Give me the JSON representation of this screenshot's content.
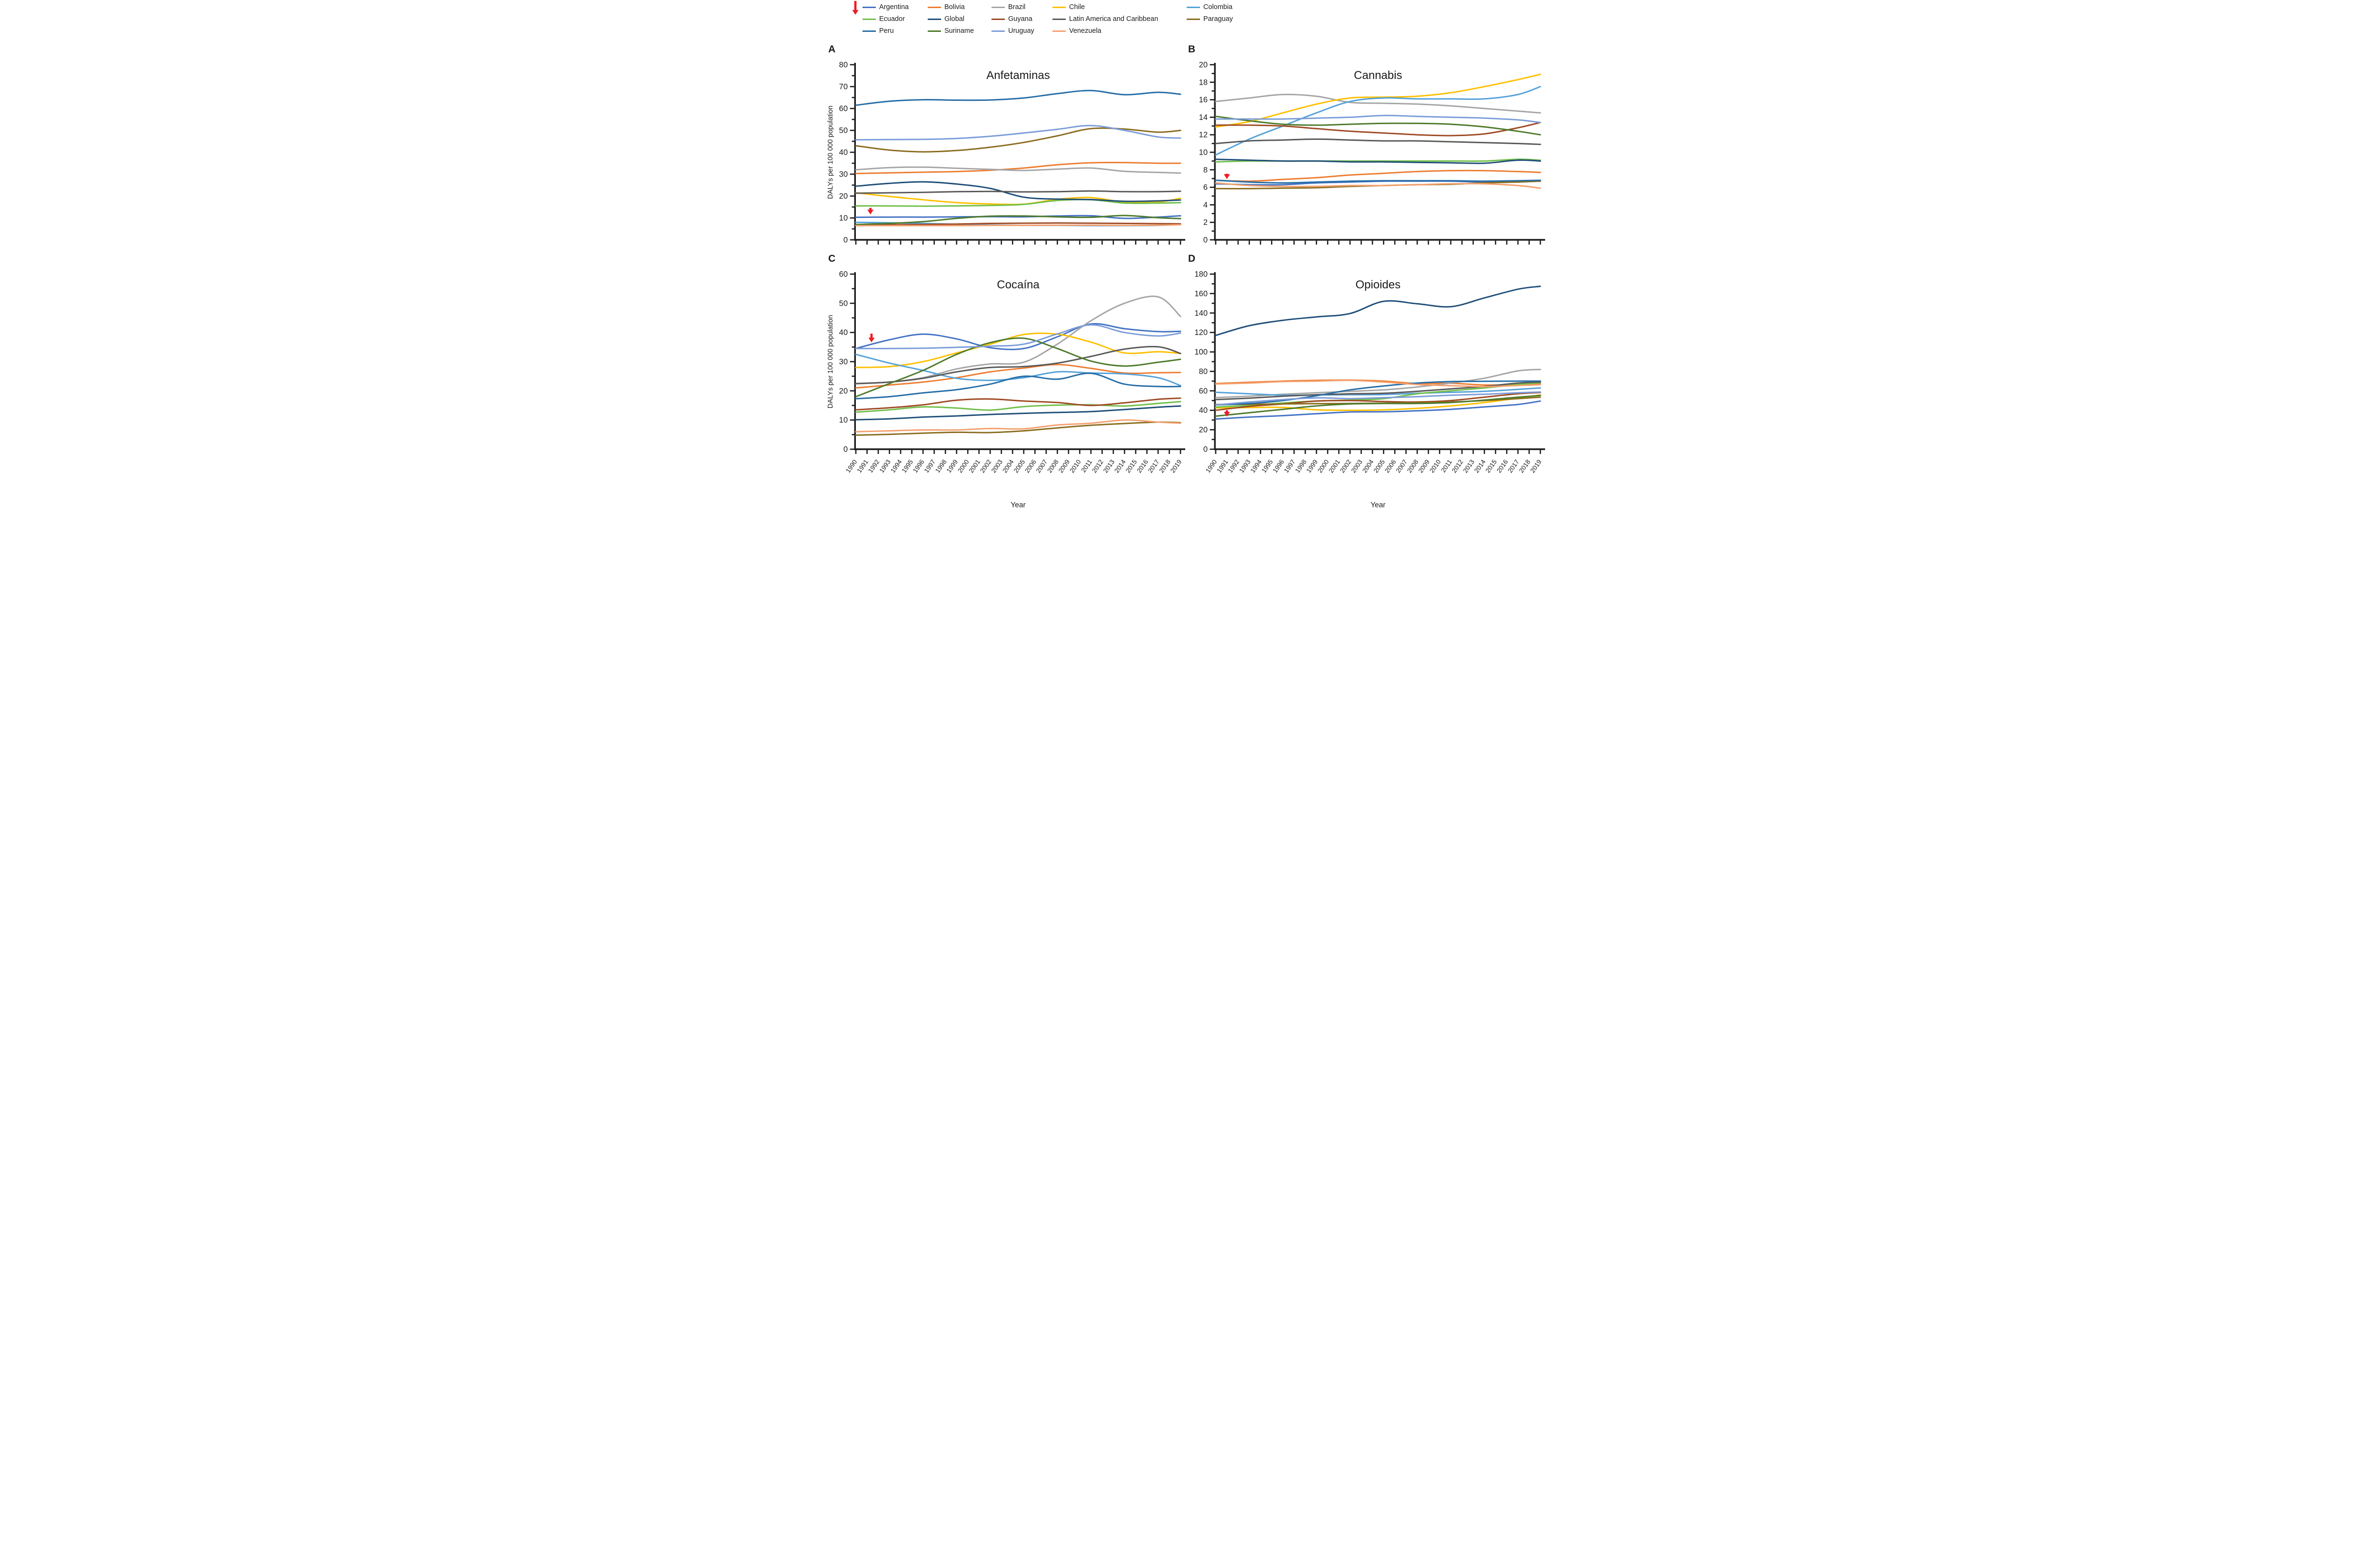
{
  "figure": {
    "y_axis_title": "DALYs per 100 000 population",
    "x_axis_title": "Year"
  },
  "legend": {
    "arrow_color": "#ec1c24",
    "items": [
      {
        "label": "Argentina",
        "color": "#4472c4"
      },
      {
        "label": "Bolivia",
        "color": "#ed7d31"
      },
      {
        "label": "Brazil",
        "color": "#a5a5a5"
      },
      {
        "label": "Chile",
        "color": "#ffc000"
      },
      {
        "label": "Colombia",
        "color": "#55a1d9"
      },
      {
        "label": "Ecuador",
        "color": "#71bf49"
      },
      {
        "label": "Global",
        "color": "#1f4e79"
      },
      {
        "label": "Guyana",
        "color": "#9e4a24"
      },
      {
        "label": "Latin America and Caribbean",
        "color": "#595959"
      },
      {
        "label": "Paraguay",
        "color": "#8a6c1e"
      },
      {
        "label": "Peru",
        "color": "#266da6"
      },
      {
        "label": "Suriname",
        "color": "#4d7a2b"
      },
      {
        "label": "Uruguay",
        "color": "#7b9cd9"
      },
      {
        "label": "Venezuela",
        "color": "#f4a06e"
      }
    ]
  },
  "axes": {
    "x_tick_labels": [
      1990,
      1991,
      1992,
      1993,
      1994,
      1995,
      1996,
      1997,
      1998,
      1999,
      2000,
      2001,
      2002,
      2003,
      2004,
      2005,
      2006,
      2007,
      2008,
      2009,
      2010,
      2011,
      2012,
      2013,
      2014,
      2015,
      2016,
      2017,
      2018,
      2019
    ]
  },
  "chart_data": [
    {
      "panel": "A",
      "letter": "A",
      "title": "Anfetaminas",
      "type": "line",
      "ylim": [
        0,
        80
      ],
      "y_ticks": [
        0,
        10,
        20,
        30,
        40,
        50,
        60,
        70,
        80
      ],
      "y_minor_step": 5,
      "show_y_axis_title": true,
      "show_x_labels": false,
      "x": [
        1990,
        1993,
        1996,
        1999,
        2002,
        2005,
        2008,
        2011,
        2014,
        2017,
        2019
      ],
      "arrow": {
        "year": 1991.3,
        "y_top": 14.6,
        "y_tip": 11.6
      },
      "series": [
        {
          "name": "Argentina",
          "values": [
            10.3,
            10.4,
            10.4,
            10.5,
            10.6,
            10.5,
            10.9,
            11.0,
            9.8,
            10.4,
            11.0
          ]
        },
        {
          "name": "Bolivia",
          "values": [
            30.3,
            30.6,
            30.9,
            31.2,
            31.8,
            32.8,
            34.3,
            35.2,
            35.3,
            35.0,
            35.0
          ]
        },
        {
          "name": "Brazil",
          "values": [
            32.0,
            33.0,
            33.2,
            32.7,
            32.2,
            31.7,
            32.3,
            32.8,
            31.3,
            30.8,
            30.5
          ]
        },
        {
          "name": "Chile",
          "values": [
            21.5,
            19.8,
            18.3,
            17.0,
            16.4,
            16.3,
            18.5,
            19.3,
            17.2,
            17.3,
            19.0
          ]
        },
        {
          "name": "Colombia",
          "values": [
            8.0,
            7.8,
            7.5,
            7.1,
            6.8,
            6.6,
            6.6,
            6.5,
            6.5,
            6.6,
            7.0
          ]
        },
        {
          "name": "Ecuador",
          "values": [
            15.5,
            15.5,
            15.4,
            15.5,
            15.7,
            16.2,
            18.0,
            18.3,
            16.8,
            16.8,
            17.0
          ]
        },
        {
          "name": "Global",
          "values": [
            24.5,
            25.8,
            26.5,
            25.5,
            23.5,
            19.5,
            18.6,
            18.4,
            17.6,
            17.8,
            18.2
          ]
        },
        {
          "name": "Guyana",
          "values": [
            6.8,
            6.9,
            7.0,
            7.2,
            7.5,
            7.6,
            7.7,
            7.6,
            7.5,
            7.4,
            7.3
          ]
        },
        {
          "name": "Latin America and Caribbean",
          "values": [
            21.3,
            21.5,
            21.7,
            22.0,
            22.1,
            21.9,
            22.0,
            22.3,
            22.0,
            22.0,
            22.2
          ]
        },
        {
          "name": "Paraguay",
          "values": [
            43.0,
            41.0,
            40.2,
            40.8,
            42.3,
            44.5,
            47.5,
            50.8,
            50.6,
            49.2,
            50.0
          ]
        },
        {
          "name": "Peru",
          "values": [
            61.5,
            63.3,
            64.0,
            63.8,
            63.9,
            64.8,
            66.8,
            68.2,
            66.3,
            67.4,
            66.5
          ]
        },
        {
          "name": "Suriname",
          "values": [
            7.0,
            7.5,
            8.3,
            9.8,
            10.8,
            10.9,
            10.5,
            10.3,
            11.1,
            10.1,
            9.7
          ]
        },
        {
          "name": "Uruguay",
          "values": [
            45.7,
            45.8,
            45.9,
            46.3,
            47.3,
            48.8,
            50.5,
            52.2,
            50.0,
            47.0,
            46.5
          ]
        },
        {
          "name": "Venezuela",
          "values": [
            6.5,
            6.5,
            6.5,
            6.5,
            6.6,
            6.6,
            6.7,
            6.7,
            6.6,
            6.7,
            6.9
          ]
        }
      ]
    },
    {
      "panel": "B",
      "letter": "B",
      "title": "Cannabis",
      "type": "line",
      "ylim": [
        0,
        20
      ],
      "y_ticks": [
        0,
        2,
        4,
        6,
        8,
        10,
        12,
        14,
        16,
        18,
        20
      ],
      "y_minor_step": 1,
      "show_y_axis_title": false,
      "show_x_labels": false,
      "x": [
        1990,
        1993,
        1996,
        1999,
        2002,
        2005,
        2008,
        2011,
        2014,
        2017,
        2019
      ],
      "arrow": {
        "year": 1991.0,
        "y_top": 7.55,
        "y_tip": 6.95
      },
      "series": [
        {
          "name": "Argentina",
          "values": [
            6.4,
            6.3,
            6.3,
            6.5,
            6.6,
            6.7,
            6.7,
            6.7,
            6.6,
            6.7,
            6.7
          ]
        },
        {
          "name": "Bolivia",
          "values": [
            6.8,
            6.7,
            6.9,
            7.1,
            7.4,
            7.6,
            7.8,
            7.9,
            7.9,
            7.8,
            7.7
          ]
        },
        {
          "name": "Brazil",
          "values": [
            15.8,
            16.2,
            16.6,
            16.4,
            15.7,
            15.6,
            15.5,
            15.3,
            15.0,
            14.7,
            14.5
          ]
        },
        {
          "name": "Chile",
          "values": [
            12.9,
            13.5,
            14.5,
            15.5,
            16.2,
            16.3,
            16.4,
            16.8,
            17.5,
            18.3,
            18.9
          ]
        },
        {
          "name": "Colombia",
          "values": [
            9.7,
            11.5,
            13.0,
            14.5,
            15.8,
            16.2,
            16.1,
            16.1,
            16.1,
            16.6,
            17.5
          ]
        },
        {
          "name": "Ecuador",
          "values": [
            8.9,
            9.0,
            9.0,
            9.0,
            9.0,
            9.0,
            9.0,
            9.0,
            9.0,
            9.2,
            9.1
          ]
        },
        {
          "name": "Global",
          "values": [
            9.2,
            9.1,
            9.0,
            9.0,
            8.9,
            8.9,
            8.85,
            8.8,
            8.75,
            9.1,
            9.0
          ]
        },
        {
          "name": "Guyana",
          "values": [
            13.1,
            13.1,
            13.0,
            12.7,
            12.4,
            12.2,
            12.0,
            11.9,
            12.1,
            12.8,
            13.4
          ]
        },
        {
          "name": "Latin America and Caribbean",
          "values": [
            11.0,
            11.3,
            11.4,
            11.5,
            11.4,
            11.3,
            11.3,
            11.2,
            11.1,
            11.0,
            10.9
          ]
        },
        {
          "name": "Paraguay",
          "values": [
            5.85,
            5.85,
            5.9,
            5.95,
            6.1,
            6.2,
            6.3,
            6.35,
            6.5,
            6.6,
            6.7
          ]
        },
        {
          "name": "Peru",
          "values": [
            6.8,
            6.6,
            6.5,
            6.6,
            6.7,
            6.75,
            6.75,
            6.75,
            6.7,
            6.75,
            6.8
          ]
        },
        {
          "name": "Suriname",
          "values": [
            14.1,
            13.6,
            13.2,
            13.1,
            13.2,
            13.3,
            13.3,
            13.2,
            12.9,
            12.4,
            12.0
          ]
        },
        {
          "name": "Uruguay",
          "values": [
            13.8,
            13.8,
            13.8,
            13.9,
            14.0,
            14.2,
            14.1,
            14.0,
            13.9,
            13.7,
            13.4
          ]
        },
        {
          "name": "Venezuela",
          "values": [
            6.5,
            6.2,
            6.1,
            6.1,
            6.2,
            6.2,
            6.3,
            6.4,
            6.4,
            6.2,
            5.9
          ]
        }
      ]
    },
    {
      "panel": "C",
      "letter": "C",
      "title": "Cocaína",
      "type": "line",
      "ylim": [
        0,
        60
      ],
      "y_ticks": [
        0,
        10,
        20,
        30,
        40,
        50,
        60
      ],
      "y_minor_step": 5,
      "show_y_axis_title": true,
      "show_x_labels": true,
      "x": [
        1990,
        1993,
        1996,
        1999,
        2002,
        2005,
        2008,
        2011,
        2014,
        2017,
        2019
      ],
      "arrow": {
        "year": 1991.4,
        "y_top": 39.6,
        "y_tip": 36.6
      },
      "series": [
        {
          "name": "Argentina",
          "values": [
            34.5,
            37.5,
            39.4,
            37.8,
            34.8,
            34.5,
            38.5,
            42.9,
            41.3,
            40.3,
            40.4
          ]
        },
        {
          "name": "Bolivia",
          "values": [
            21.0,
            22.0,
            23.0,
            24.5,
            26.5,
            27.8,
            29.0,
            27.7,
            26.1,
            26.2,
            26.3
          ]
        },
        {
          "name": "Brazil",
          "values": [
            22.4,
            23.0,
            24.5,
            27.5,
            29.2,
            29.8,
            36.0,
            44.0,
            50.0,
            52.2,
            45.5
          ]
        },
        {
          "name": "Chile",
          "values": [
            28.0,
            28.3,
            30.0,
            33.0,
            36.0,
            39.3,
            39.4,
            36.7,
            33.0,
            33.4,
            32.8
          ]
        },
        {
          "name": "Colombia",
          "values": [
            32.5,
            29.5,
            27.0,
            24.3,
            23.6,
            24.5,
            26.5,
            26.1,
            25.8,
            24.5,
            21.8
          ]
        },
        {
          "name": "Ecuador",
          "values": [
            12.7,
            13.5,
            14.5,
            14.1,
            13.4,
            14.6,
            15.1,
            15.2,
            14.8,
            15.7,
            16.3
          ]
        },
        {
          "name": "Global",
          "values": [
            10.1,
            10.4,
            11.0,
            11.4,
            11.9,
            12.3,
            12.6,
            12.9,
            13.6,
            14.4,
            14.8
          ]
        },
        {
          "name": "Guyana",
          "values": [
            13.5,
            14.2,
            15.2,
            16.8,
            17.2,
            16.5,
            16.0,
            15.0,
            15.9,
            17.1,
            17.5
          ]
        },
        {
          "name": "Latin America and Caribbean",
          "values": [
            22.5,
            23.0,
            24.3,
            26.5,
            28.0,
            28.3,
            29.5,
            31.8,
            34.3,
            35.1,
            32.8
          ]
        },
        {
          "name": "Paraguay",
          "values": [
            4.8,
            5.1,
            5.5,
            5.8,
            5.7,
            6.3,
            7.3,
            8.2,
            8.8,
            9.3,
            9.1
          ]
        },
        {
          "name": "Peru",
          "values": [
            17.3,
            18.0,
            19.3,
            20.4,
            22.3,
            25.0,
            24.0,
            26.0,
            22.3,
            21.5,
            21.5
          ]
        },
        {
          "name": "Suriname",
          "values": [
            18.0,
            22.5,
            27.0,
            32.5,
            36.5,
            38.0,
            34.5,
            30.2,
            28.5,
            29.8,
            30.8
          ]
        },
        {
          "name": "Uruguay",
          "values": [
            34.5,
            34.5,
            34.6,
            34.9,
            35.3,
            36.0,
            39.5,
            42.6,
            40.0,
            38.8,
            39.8
          ]
        },
        {
          "name": "Venezuela",
          "values": [
            6.0,
            6.3,
            6.6,
            6.6,
            7.1,
            7.0,
            8.3,
            8.9,
            10.0,
            9.3,
            8.9
          ]
        }
      ]
    },
    {
      "panel": "D",
      "letter": "D",
      "title": "Opioides",
      "type": "line",
      "ylim": [
        0,
        180
      ],
      "y_ticks": [
        0,
        20,
        40,
        60,
        80,
        100,
        120,
        140,
        160,
        180
      ],
      "y_minor_step": 10,
      "show_y_axis_title": false,
      "show_x_labels": true,
      "x": [
        1990,
        1993,
        1996,
        1999,
        2002,
        2005,
        2008,
        2011,
        2014,
        2017,
        2019
      ],
      "arrow": {
        "year": 1991.0,
        "y_top": 40.0,
        "y_tip": 33.5
      },
      "series": [
        {
          "name": "Argentina",
          "values": [
            31,
            33,
            34.5,
            36.5,
            38.3,
            38.5,
            39.5,
            41,
            43.5,
            46,
            49.5
          ]
        },
        {
          "name": "Bolivia",
          "values": [
            67.5,
            68.8,
            70,
            70.8,
            71,
            70,
            67.5,
            67.8,
            66,
            66.5,
            67.3
          ]
        },
        {
          "name": "Brazil",
          "values": [
            53,
            54.5,
            56.5,
            58,
            59.5,
            61,
            64,
            68,
            73,
            80.5,
            82
          ]
        },
        {
          "name": "Chile",
          "values": [
            42.5,
            42.8,
            43,
            40.5,
            40,
            40.5,
            42,
            44.5,
            48,
            52.5,
            55.8
          ]
        },
        {
          "name": "Colombia",
          "values": [
            58.5,
            57,
            55.5,
            55.8,
            56,
            56.2,
            57.5,
            58.5,
            59.5,
            61.5,
            63
          ]
        },
        {
          "name": "Ecuador",
          "values": [
            43.3,
            45,
            47.5,
            49.5,
            50.5,
            52,
            57,
            60,
            63,
            66.5,
            68.3
          ]
        },
        {
          "name": "Global",
          "values": [
            117,
            127,
            132.5,
            136,
            139.5,
            152,
            149.5,
            146.5,
            155.5,
            164.5,
            167.5
          ]
        },
        {
          "name": "Guyana",
          "values": [
            40,
            44,
            46.5,
            49.5,
            50,
            49,
            48.5,
            50,
            53.5,
            57,
            58.3
          ]
        },
        {
          "name": "Latin America and Caribbean",
          "values": [
            51,
            52.5,
            54.5,
            56,
            57,
            57.5,
            59.5,
            62,
            64.5,
            68,
            69
          ]
        },
        {
          "name": "Paraguay",
          "values": [
            46,
            46.2,
            46.5,
            46.8,
            47,
            47.3,
            47.8,
            48.5,
            50,
            52,
            53.5
          ]
        },
        {
          "name": "Peru",
          "values": [
            45.5,
            47,
            50,
            55,
            61,
            65,
            68,
            69.5,
            69.8,
            70,
            70
          ]
        },
        {
          "name": "Suriname",
          "values": [
            34,
            37.5,
            41,
            44.5,
            46.5,
            47,
            47,
            48,
            50.5,
            53.5,
            55.2
          ]
        },
        {
          "name": "Uruguay",
          "values": [
            45.5,
            48.5,
            51,
            52.8,
            52,
            53,
            54,
            55.5,
            56.5,
            58,
            58.8
          ]
        },
        {
          "name": "Venezuela",
          "values": [
            67,
            68,
            69.5,
            70,
            70.8,
            69,
            66.5,
            65.3,
            64.3,
            65.5,
            66.3
          ]
        }
      ]
    }
  ]
}
